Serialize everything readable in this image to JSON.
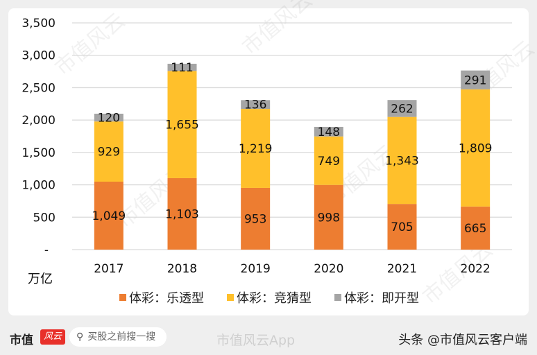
{
  "chart_data": {
    "type": "stacked-bar",
    "categories": [
      "2017",
      "2018",
      "2019",
      "2020",
      "2021",
      "2022"
    ],
    "series": [
      {
        "name": "体彩：乐透型",
        "color": "#ED7D31",
        "values": [
          1049,
          1103,
          953,
          998,
          705,
          665
        ],
        "labels": [
          "1,049",
          "1,103",
          "953",
          "998",
          "705",
          "665"
        ]
      },
      {
        "name": "体彩：竞猜型",
        "color": "#FFC02B",
        "values": [
          929,
          1655,
          1219,
          749,
          1343,
          1809
        ],
        "labels": [
          "929",
          "1,655",
          "1,219",
          "749",
          "1,343",
          "1,809"
        ]
      },
      {
        "name": "体彩：即开型",
        "color": "#A5A5A5",
        "values": [
          120,
          111,
          136,
          148,
          262,
          291
        ],
        "labels": [
          "120",
          "111",
          "136",
          "148",
          "262",
          "291"
        ]
      }
    ],
    "yticks": [
      0,
      500,
      1000,
      1500,
      2000,
      2500,
      3000,
      3500
    ],
    "ytick_labels": [
      "-",
      "500",
      "1,000",
      "1,500",
      "2,000",
      "2,500",
      "3,000",
      "3,500"
    ],
    "ylim": [
      0,
      3500
    ],
    "unit": "万亿",
    "grid": true,
    "legend": "bottom"
  },
  "watermark": "市值风云",
  "footer": {
    "brand": "市值",
    "brand_logo": "风云",
    "search_placeholder": "买股之前搜一搜",
    "weibo": "市值风云App",
    "toutiao": "头条 @市值风云客户端"
  }
}
